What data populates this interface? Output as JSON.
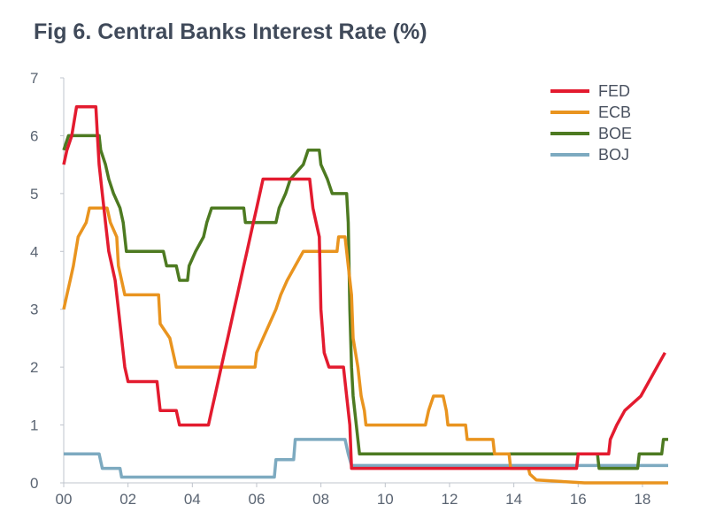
{
  "chart_data": {
    "type": "line",
    "title": "Fig 6. Central Banks Interest Rate (%)",
    "xlabel": "",
    "ylabel": "",
    "xlim": [
      2000,
      2018.8
    ],
    "ylim": [
      0,
      7
    ],
    "x_ticks": [
      {
        "value": 2000,
        "label": "00"
      },
      {
        "value": 2002,
        "label": "02"
      },
      {
        "value": 2004,
        "label": "04"
      },
      {
        "value": 2006,
        "label": "06"
      },
      {
        "value": 2008,
        "label": "08"
      },
      {
        "value": 2010,
        "label": "10"
      },
      {
        "value": 2012,
        "label": "12"
      },
      {
        "value": 2014,
        "label": "14"
      },
      {
        "value": 2016,
        "label": "16"
      },
      {
        "value": 2018,
        "label": "18"
      }
    ],
    "y_ticks": [
      0,
      1,
      2,
      3,
      4,
      5,
      6,
      7
    ],
    "grid": false,
    "legend_position": "top-right",
    "series": [
      {
        "name": "FED",
        "color": "#e31b2f",
        "points": [
          [
            2000.0,
            5.5
          ],
          [
            2000.1,
            5.75
          ],
          [
            2000.25,
            6.0
          ],
          [
            2000.4,
            6.5
          ],
          [
            2001.0,
            6.5
          ],
          [
            2001.05,
            6.0
          ],
          [
            2001.1,
            5.5
          ],
          [
            2001.2,
            5.0
          ],
          [
            2001.3,
            4.5
          ],
          [
            2001.4,
            4.0
          ],
          [
            2001.5,
            3.75
          ],
          [
            2001.6,
            3.5
          ],
          [
            2001.7,
            3.0
          ],
          [
            2001.8,
            2.5
          ],
          [
            2001.9,
            2.0
          ],
          [
            2002.0,
            1.75
          ],
          [
            2002.9,
            1.75
          ],
          [
            2003.0,
            1.25
          ],
          [
            2003.5,
            1.25
          ],
          [
            2003.6,
            1.0
          ],
          [
            2004.5,
            1.0
          ],
          [
            2004.6,
            1.25
          ],
          [
            2004.7,
            1.5
          ],
          [
            2004.8,
            1.75
          ],
          [
            2004.9,
            2.0
          ],
          [
            2005.0,
            2.25
          ],
          [
            2005.1,
            2.5
          ],
          [
            2005.2,
            2.75
          ],
          [
            2005.3,
            3.0
          ],
          [
            2005.4,
            3.25
          ],
          [
            2005.5,
            3.5
          ],
          [
            2005.6,
            3.75
          ],
          [
            2005.7,
            4.0
          ],
          [
            2005.8,
            4.25
          ],
          [
            2005.9,
            4.5
          ],
          [
            2006.0,
            4.75
          ],
          [
            2006.1,
            5.0
          ],
          [
            2006.2,
            5.25
          ],
          [
            2007.65,
            5.25
          ],
          [
            2007.75,
            4.75
          ],
          [
            2007.85,
            4.5
          ],
          [
            2007.95,
            4.25
          ],
          [
            2008.0,
            3.0
          ],
          [
            2008.1,
            2.25
          ],
          [
            2008.25,
            2.0
          ],
          [
            2008.7,
            2.0
          ],
          [
            2008.8,
            1.5
          ],
          [
            2008.9,
            1.0
          ],
          [
            2008.95,
            0.25
          ],
          [
            2015.95,
            0.25
          ],
          [
            2016.0,
            0.5
          ],
          [
            2016.95,
            0.5
          ],
          [
            2017.0,
            0.75
          ],
          [
            2017.2,
            1.0
          ],
          [
            2017.45,
            1.25
          ],
          [
            2017.95,
            1.5
          ],
          [
            2018.2,
            1.75
          ],
          [
            2018.45,
            2.0
          ],
          [
            2018.7,
            2.25
          ]
        ]
      },
      {
        "name": "ECB",
        "color": "#e9941f",
        "points": [
          [
            2000.0,
            3.0
          ],
          [
            2000.1,
            3.25
          ],
          [
            2000.2,
            3.5
          ],
          [
            2000.3,
            3.75
          ],
          [
            2000.45,
            4.25
          ],
          [
            2000.7,
            4.5
          ],
          [
            2000.8,
            4.75
          ],
          [
            2001.35,
            4.75
          ],
          [
            2001.45,
            4.5
          ],
          [
            2001.65,
            4.25
          ],
          [
            2001.7,
            3.75
          ],
          [
            2001.9,
            3.25
          ],
          [
            2002.95,
            3.25
          ],
          [
            2003.0,
            2.75
          ],
          [
            2003.3,
            2.5
          ],
          [
            2003.5,
            2.0
          ],
          [
            2005.95,
            2.0
          ],
          [
            2006.0,
            2.25
          ],
          [
            2006.2,
            2.5
          ],
          [
            2006.4,
            2.75
          ],
          [
            2006.6,
            3.0
          ],
          [
            2006.75,
            3.25
          ],
          [
            2006.95,
            3.5
          ],
          [
            2007.2,
            3.75
          ],
          [
            2007.45,
            4.0
          ],
          [
            2008.5,
            4.0
          ],
          [
            2008.55,
            4.25
          ],
          [
            2008.75,
            4.25
          ],
          [
            2008.85,
            3.75
          ],
          [
            2008.95,
            3.25
          ],
          [
            2009.0,
            2.5
          ],
          [
            2009.15,
            2.0
          ],
          [
            2009.25,
            1.5
          ],
          [
            2009.35,
            1.25
          ],
          [
            2009.4,
            1.0
          ],
          [
            2011.25,
            1.0
          ],
          [
            2011.35,
            1.25
          ],
          [
            2011.5,
            1.5
          ],
          [
            2011.8,
            1.5
          ],
          [
            2011.9,
            1.25
          ],
          [
            2011.95,
            1.0
          ],
          [
            2012.5,
            1.0
          ],
          [
            2012.55,
            0.75
          ],
          [
            2013.35,
            0.75
          ],
          [
            2013.4,
            0.5
          ],
          [
            2013.85,
            0.5
          ],
          [
            2013.9,
            0.25
          ],
          [
            2014.45,
            0.25
          ],
          [
            2014.5,
            0.15
          ],
          [
            2014.7,
            0.05
          ],
          [
            2016.2,
            0.0
          ],
          [
            2018.8,
            0.0
          ]
        ]
      },
      {
        "name": "BOE",
        "color": "#4d7a21",
        "points": [
          [
            2000.0,
            5.75
          ],
          [
            2000.15,
            6.0
          ],
          [
            2001.1,
            6.0
          ],
          [
            2001.15,
            5.75
          ],
          [
            2001.3,
            5.5
          ],
          [
            2001.4,
            5.25
          ],
          [
            2001.55,
            5.0
          ],
          [
            2001.75,
            4.75
          ],
          [
            2001.85,
            4.5
          ],
          [
            2001.95,
            4.0
          ],
          [
            2003.1,
            4.0
          ],
          [
            2003.2,
            3.75
          ],
          [
            2003.5,
            3.75
          ],
          [
            2003.6,
            3.5
          ],
          [
            2003.85,
            3.5
          ],
          [
            2003.9,
            3.75
          ],
          [
            2004.1,
            4.0
          ],
          [
            2004.35,
            4.25
          ],
          [
            2004.45,
            4.5
          ],
          [
            2004.6,
            4.75
          ],
          [
            2005.6,
            4.75
          ],
          [
            2005.65,
            4.5
          ],
          [
            2006.6,
            4.5
          ],
          [
            2006.7,
            4.75
          ],
          [
            2006.9,
            5.0
          ],
          [
            2007.05,
            5.25
          ],
          [
            2007.45,
            5.5
          ],
          [
            2007.6,
            5.75
          ],
          [
            2007.95,
            5.75
          ],
          [
            2008.0,
            5.5
          ],
          [
            2008.2,
            5.25
          ],
          [
            2008.35,
            5.0
          ],
          [
            2008.8,
            5.0
          ],
          [
            2008.85,
            4.5
          ],
          [
            2008.9,
            3.0
          ],
          [
            2008.95,
            2.0
          ],
          [
            2009.0,
            1.5
          ],
          [
            2009.1,
            1.0
          ],
          [
            2009.2,
            0.5
          ],
          [
            2016.6,
            0.5
          ],
          [
            2016.65,
            0.25
          ],
          [
            2017.85,
            0.25
          ],
          [
            2017.9,
            0.5
          ],
          [
            2018.6,
            0.5
          ],
          [
            2018.65,
            0.75
          ],
          [
            2018.8,
            0.75
          ]
        ]
      },
      {
        "name": "BOJ",
        "color": "#7daac0",
        "points": [
          [
            2000.0,
            0.5
          ],
          [
            2001.1,
            0.5
          ],
          [
            2001.2,
            0.25
          ],
          [
            2001.75,
            0.25
          ],
          [
            2001.8,
            0.1
          ],
          [
            2006.55,
            0.1
          ],
          [
            2006.6,
            0.4
          ],
          [
            2007.15,
            0.4
          ],
          [
            2007.2,
            0.75
          ],
          [
            2008.75,
            0.75
          ],
          [
            2008.85,
            0.5
          ],
          [
            2008.95,
            0.3
          ],
          [
            2018.8,
            0.3
          ]
        ]
      }
    ]
  }
}
